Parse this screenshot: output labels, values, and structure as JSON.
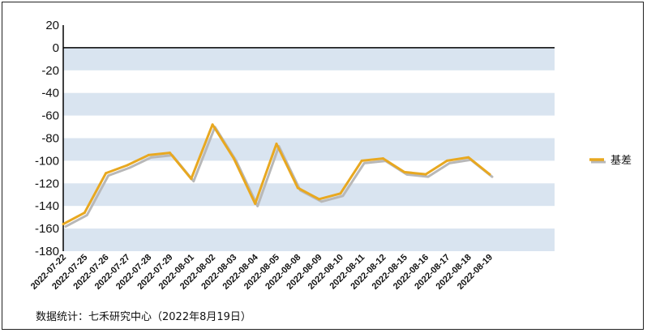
{
  "chart_data": {
    "type": "line",
    "categories": [
      "2022-07-22",
      "2022-07-25",
      "2022-07-26",
      "2022-07-27",
      "2022-07-28",
      "2022-07-29",
      "2022-08-01",
      "2022-08-02",
      "2022-08-03",
      "2022-08-04",
      "2022-08-05",
      "2022-08-08",
      "2022-08-09",
      "2022-08-10",
      "2022-08-11",
      "2022-08-12",
      "2022-08-15",
      "2022-08-16",
      "2022-08-17",
      "2022-08-18",
      "2022-08-19"
    ],
    "series": [
      {
        "name": "基差",
        "values": [
          -156,
          -146,
          -111,
          -104,
          -95,
          -93,
          -116,
          -68,
          -98,
          -138,
          -85,
          -124,
          -134,
          -129,
          -100,
          -98,
          -110,
          -112,
          -100,
          -97,
          -112
        ]
      }
    ],
    "ylim": [
      -180,
      20
    ],
    "yticks": [
      20,
      0,
      -20,
      -40,
      -60,
      -80,
      -100,
      -120,
      -140,
      -160,
      -180
    ],
    "grid": "alternating horizontal bands",
    "legend_position": "right",
    "colors": {
      "line": "#e8a820",
      "band": "#d9e4f0",
      "shadow": "#b8b8b8",
      "zero_line": "#000000"
    }
  },
  "source_note": "数据统计：七禾研究中心（2022年8月19日）"
}
